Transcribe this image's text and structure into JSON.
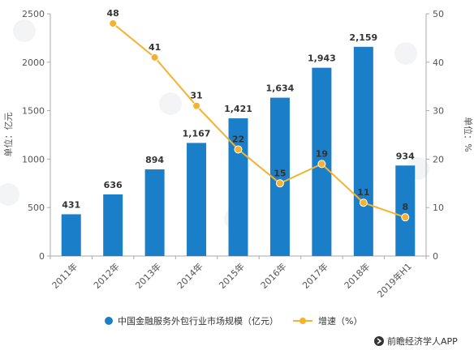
{
  "chart_data": {
    "type": "bar",
    "categories": [
      "2011年",
      "2012年",
      "2013年",
      "2014年",
      "2015年",
      "2016年",
      "2017年",
      "2018年",
      "2019年H1"
    ],
    "series": [
      {
        "name": "中国金融服务外包行业市场规模（亿元）",
        "type": "bar",
        "axis": "left",
        "values": [
          431,
          636,
          894,
          1167,
          1421,
          1634,
          1943,
          2159,
          934
        ],
        "labels": [
          "431",
          "636",
          "894",
          "1,167",
          "1,421",
          "1,634",
          "1,943",
          "2,159",
          "934"
        ]
      },
      {
        "name": "增速（%）",
        "type": "line",
        "axis": "right",
        "values": [
          null,
          48,
          41,
          31,
          22,
          15,
          19,
          11,
          8
        ],
        "labels": [
          "",
          "48",
          "41",
          "31",
          "22",
          "15",
          "19",
          "11",
          "8"
        ]
      }
    ],
    "ylabel": "单位：亿元",
    "y2label": "单位：%",
    "ylim": [
      0,
      2500
    ],
    "y2lim": [
      0,
      50
    ],
    "yticks": [
      0,
      500,
      1000,
      1500,
      2000,
      2500
    ],
    "y2ticks": [
      0,
      10,
      20,
      30,
      40,
      50
    ],
    "grid": false,
    "legend": "bottom",
    "colors": {
      "bar": "#1a7fc8",
      "line": "#f5b22f"
    }
  },
  "credit": {
    "icon": "forward-arrow-circle-icon",
    "text": "前瞻经济学人APP"
  }
}
